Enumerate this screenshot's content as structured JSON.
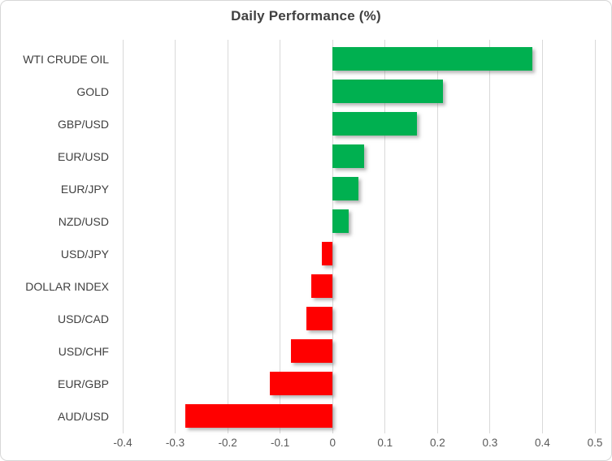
{
  "chart_data": {
    "type": "bar",
    "orientation": "horizontal",
    "title": "Daily Performance (%)",
    "categories": [
      "WTI CRUDE OIL",
      "GOLD",
      "GBP/USD",
      "EUR/USD",
      "EUR/JPY",
      "NZD/USD",
      "USD/JPY",
      "DOLLAR INDEX",
      "USD/CAD",
      "USD/CHF",
      "EUR/GBP",
      "AUD/USD"
    ],
    "values": [
      0.38,
      0.21,
      0.16,
      0.06,
      0.05,
      0.03,
      -0.02,
      -0.04,
      -0.05,
      -0.08,
      -0.12,
      -0.28
    ],
    "xlabel": "",
    "ylabel": "",
    "xlim": [
      -0.4,
      0.5
    ],
    "xticks": [
      -0.4,
      -0.3,
      -0.2,
      -0.1,
      0,
      0.1,
      0.2,
      0.3,
      0.4,
      0.5
    ],
    "xtick_labels": [
      "-0.4",
      "-0.3",
      "-0.2",
      "-0.1",
      "0",
      "0.1",
      "0.2",
      "0.3",
      "0.4",
      "0.5"
    ],
    "grid": true,
    "legend": false,
    "colors": {
      "positive": "#00B050",
      "negative": "#FF0000",
      "title_text": "#404040",
      "category_text": "#3f3f3f",
      "tick_text": "#595959",
      "gridline": "#d9d9d9",
      "frame_border": "#d7d7d7",
      "background": "#ffffff"
    }
  }
}
